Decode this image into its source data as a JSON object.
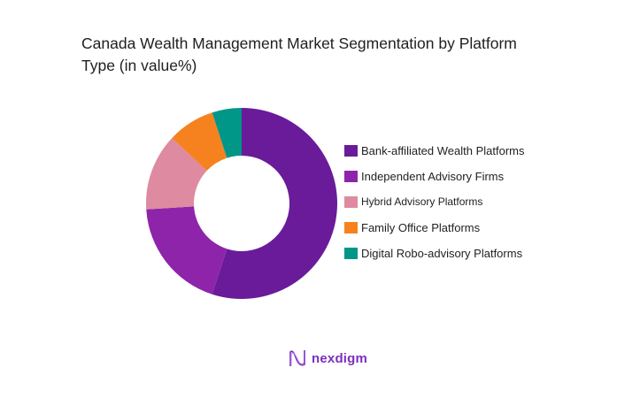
{
  "chart_data": {
    "type": "pie",
    "subtype": "donut",
    "title": "Canada Wealth Management Market Segmentation by Platform Type (in value%)",
    "categories": [
      "Bank-affiliated Wealth Platforms",
      "Independent Advisory Firms",
      "Hybrid Advisory Platforms",
      "Family Office Platforms",
      "Digital Robo-advisory Platforms"
    ],
    "values": [
      55,
      19,
      13,
      8,
      5
    ],
    "colors": [
      "#6a1b9a",
      "#8e24aa",
      "#de8aa0",
      "#f5821f",
      "#009688"
    ],
    "legend_position": "right",
    "start_angle": "12 o'clock, clockwise"
  },
  "title": {
    "line1": "Canada Wealth Management Market Segmentation by Platform",
    "line2": "Type (in value%)"
  },
  "legend": {
    "items": [
      {
        "label": "Bank-affiliated Wealth Platforms",
        "color": "#6a1b9a"
      },
      {
        "label": "Independent Advisory Firms",
        "color": "#8e24aa"
      },
      {
        "label": "Hybrid Advisory Platforms",
        "color": "#de8aa0"
      },
      {
        "label": "Family Office Platforms",
        "color": "#f5821f"
      },
      {
        "label": "Digital Robo-advisory Platforms",
        "color": "#009688"
      }
    ]
  },
  "logo": {
    "text": "nexdigm",
    "color": "#7b2fbf"
  }
}
